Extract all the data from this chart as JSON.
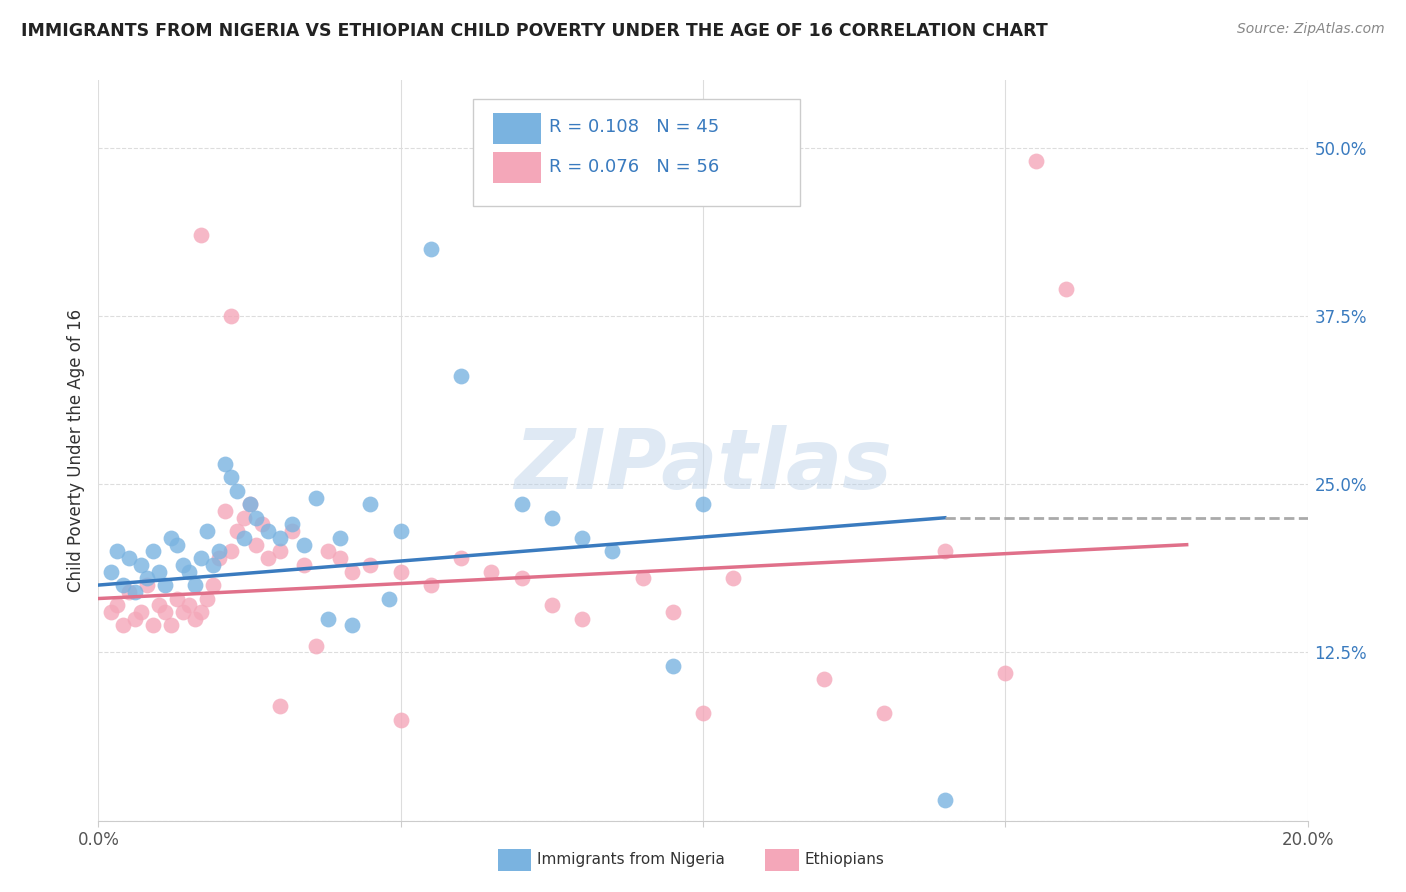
{
  "title": "IMMIGRANTS FROM NIGERIA VS ETHIOPIAN CHILD POVERTY UNDER THE AGE OF 16 CORRELATION CHART",
  "source": "Source: ZipAtlas.com",
  "ylabel": "Child Poverty Under the Age of 16",
  "xlim": [
    0.0,
    0.2
  ],
  "ylim": [
    0.0,
    0.55
  ],
  "yticks": [
    0.0,
    0.125,
    0.25,
    0.375,
    0.5
  ],
  "ytick_labels": [
    "",
    "12.5%",
    "25.0%",
    "37.5%",
    "50.0%"
  ],
  "xticks": [
    0.0,
    0.05,
    0.1,
    0.15,
    0.2
  ],
  "xtick_labels": [
    "0.0%",
    "",
    "",
    "",
    "20.0%"
  ],
  "nigeria_color": "#7ab3e0",
  "ethiopia_color": "#f4a7b9",
  "nigeria_R": 0.108,
  "nigeria_N": 45,
  "ethiopia_R": 0.076,
  "ethiopia_N": 56,
  "trend_color_nigeria": "#3a7bbf",
  "trend_color_ethiopia": "#e0708a",
  "watermark": "ZIPatlas",
  "legend_label_nigeria": "Immigrants from Nigeria",
  "legend_label_ethiopia": "Ethiopians",
  "nigeria_scatter_x": [
    0.002,
    0.003,
    0.004,
    0.005,
    0.006,
    0.007,
    0.008,
    0.009,
    0.01,
    0.011,
    0.012,
    0.013,
    0.014,
    0.015,
    0.016,
    0.017,
    0.018,
    0.019,
    0.02,
    0.021,
    0.022,
    0.023,
    0.024,
    0.025,
    0.026,
    0.028,
    0.03,
    0.032,
    0.034,
    0.036,
    0.038,
    0.04,
    0.042,
    0.045,
    0.048,
    0.05,
    0.055,
    0.06,
    0.07,
    0.075,
    0.08,
    0.085,
    0.095,
    0.1,
    0.14
  ],
  "nigeria_scatter_y": [
    0.185,
    0.2,
    0.175,
    0.195,
    0.17,
    0.19,
    0.18,
    0.2,
    0.185,
    0.175,
    0.21,
    0.205,
    0.19,
    0.185,
    0.175,
    0.195,
    0.215,
    0.19,
    0.2,
    0.265,
    0.255,
    0.245,
    0.21,
    0.235,
    0.225,
    0.215,
    0.21,
    0.22,
    0.205,
    0.24,
    0.15,
    0.21,
    0.145,
    0.235,
    0.165,
    0.215,
    0.425,
    0.33,
    0.235,
    0.225,
    0.21,
    0.2,
    0.115,
    0.235,
    0.015
  ],
  "ethiopia_scatter_x": [
    0.002,
    0.003,
    0.004,
    0.005,
    0.006,
    0.007,
    0.008,
    0.009,
    0.01,
    0.011,
    0.012,
    0.013,
    0.014,
    0.015,
    0.016,
    0.017,
    0.018,
    0.019,
    0.02,
    0.021,
    0.022,
    0.023,
    0.024,
    0.025,
    0.026,
    0.027,
    0.028,
    0.03,
    0.032,
    0.034,
    0.036,
    0.038,
    0.04,
    0.042,
    0.045,
    0.05,
    0.055,
    0.06,
    0.065,
    0.07,
    0.075,
    0.08,
    0.09,
    0.095,
    0.1,
    0.105,
    0.12,
    0.13,
    0.14,
    0.15,
    0.155,
    0.16,
    0.017,
    0.022,
    0.03,
    0.05
  ],
  "ethiopia_scatter_y": [
    0.155,
    0.16,
    0.145,
    0.17,
    0.15,
    0.155,
    0.175,
    0.145,
    0.16,
    0.155,
    0.145,
    0.165,
    0.155,
    0.16,
    0.15,
    0.155,
    0.165,
    0.175,
    0.195,
    0.23,
    0.2,
    0.215,
    0.225,
    0.235,
    0.205,
    0.22,
    0.195,
    0.2,
    0.215,
    0.19,
    0.13,
    0.2,
    0.195,
    0.185,
    0.19,
    0.185,
    0.175,
    0.195,
    0.185,
    0.18,
    0.16,
    0.15,
    0.18,
    0.155,
    0.08,
    0.18,
    0.105,
    0.08,
    0.2,
    0.11,
    0.49,
    0.395,
    0.435,
    0.375,
    0.085,
    0.075
  ]
}
